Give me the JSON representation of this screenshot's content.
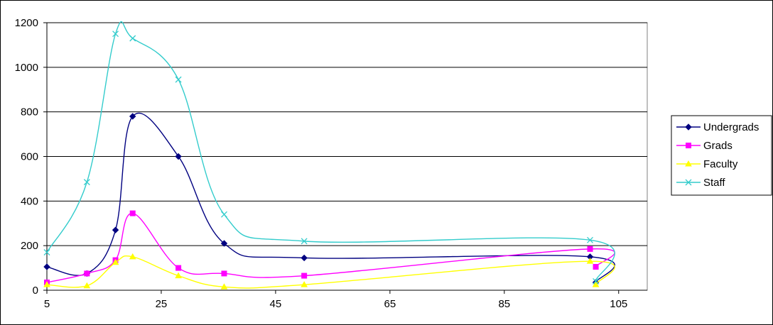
{
  "chart_data": {
    "type": "line",
    "title": "",
    "xlabel": "",
    "ylabel": "",
    "xlim": [
      5,
      110
    ],
    "ylim": [
      0,
      1200
    ],
    "xticks": [
      5,
      25,
      45,
      65,
      85,
      105
    ],
    "yticks": [
      0,
      200,
      400,
      600,
      800,
      1000,
      1200
    ],
    "grid": "horizontal",
    "legend": "right",
    "smooth": true,
    "x": [
      5,
      12,
      17,
      20,
      28,
      36,
      50,
      100,
      101
    ],
    "series": [
      {
        "name": "Undergrads",
        "color": "#000080",
        "marker": "diamond",
        "values": [
          105,
          75,
          270,
          780,
          600,
          210,
          145,
          150,
          35
        ]
      },
      {
        "name": "Grads",
        "color": "#FF00FF",
        "marker": "square",
        "values": [
          35,
          75,
          135,
          345,
          100,
          75,
          65,
          185,
          105
        ]
      },
      {
        "name": "Faculty",
        "color": "#FFFF00",
        "marker": "triangle",
        "values": [
          25,
          20,
          125,
          150,
          65,
          15,
          25,
          130,
          25
        ]
      },
      {
        "name": "Staff",
        "color": "#33CCCC",
        "marker": "x",
        "values": [
          170,
          485,
          1150,
          1130,
          945,
          340,
          220,
          225,
          40
        ]
      }
    ]
  }
}
